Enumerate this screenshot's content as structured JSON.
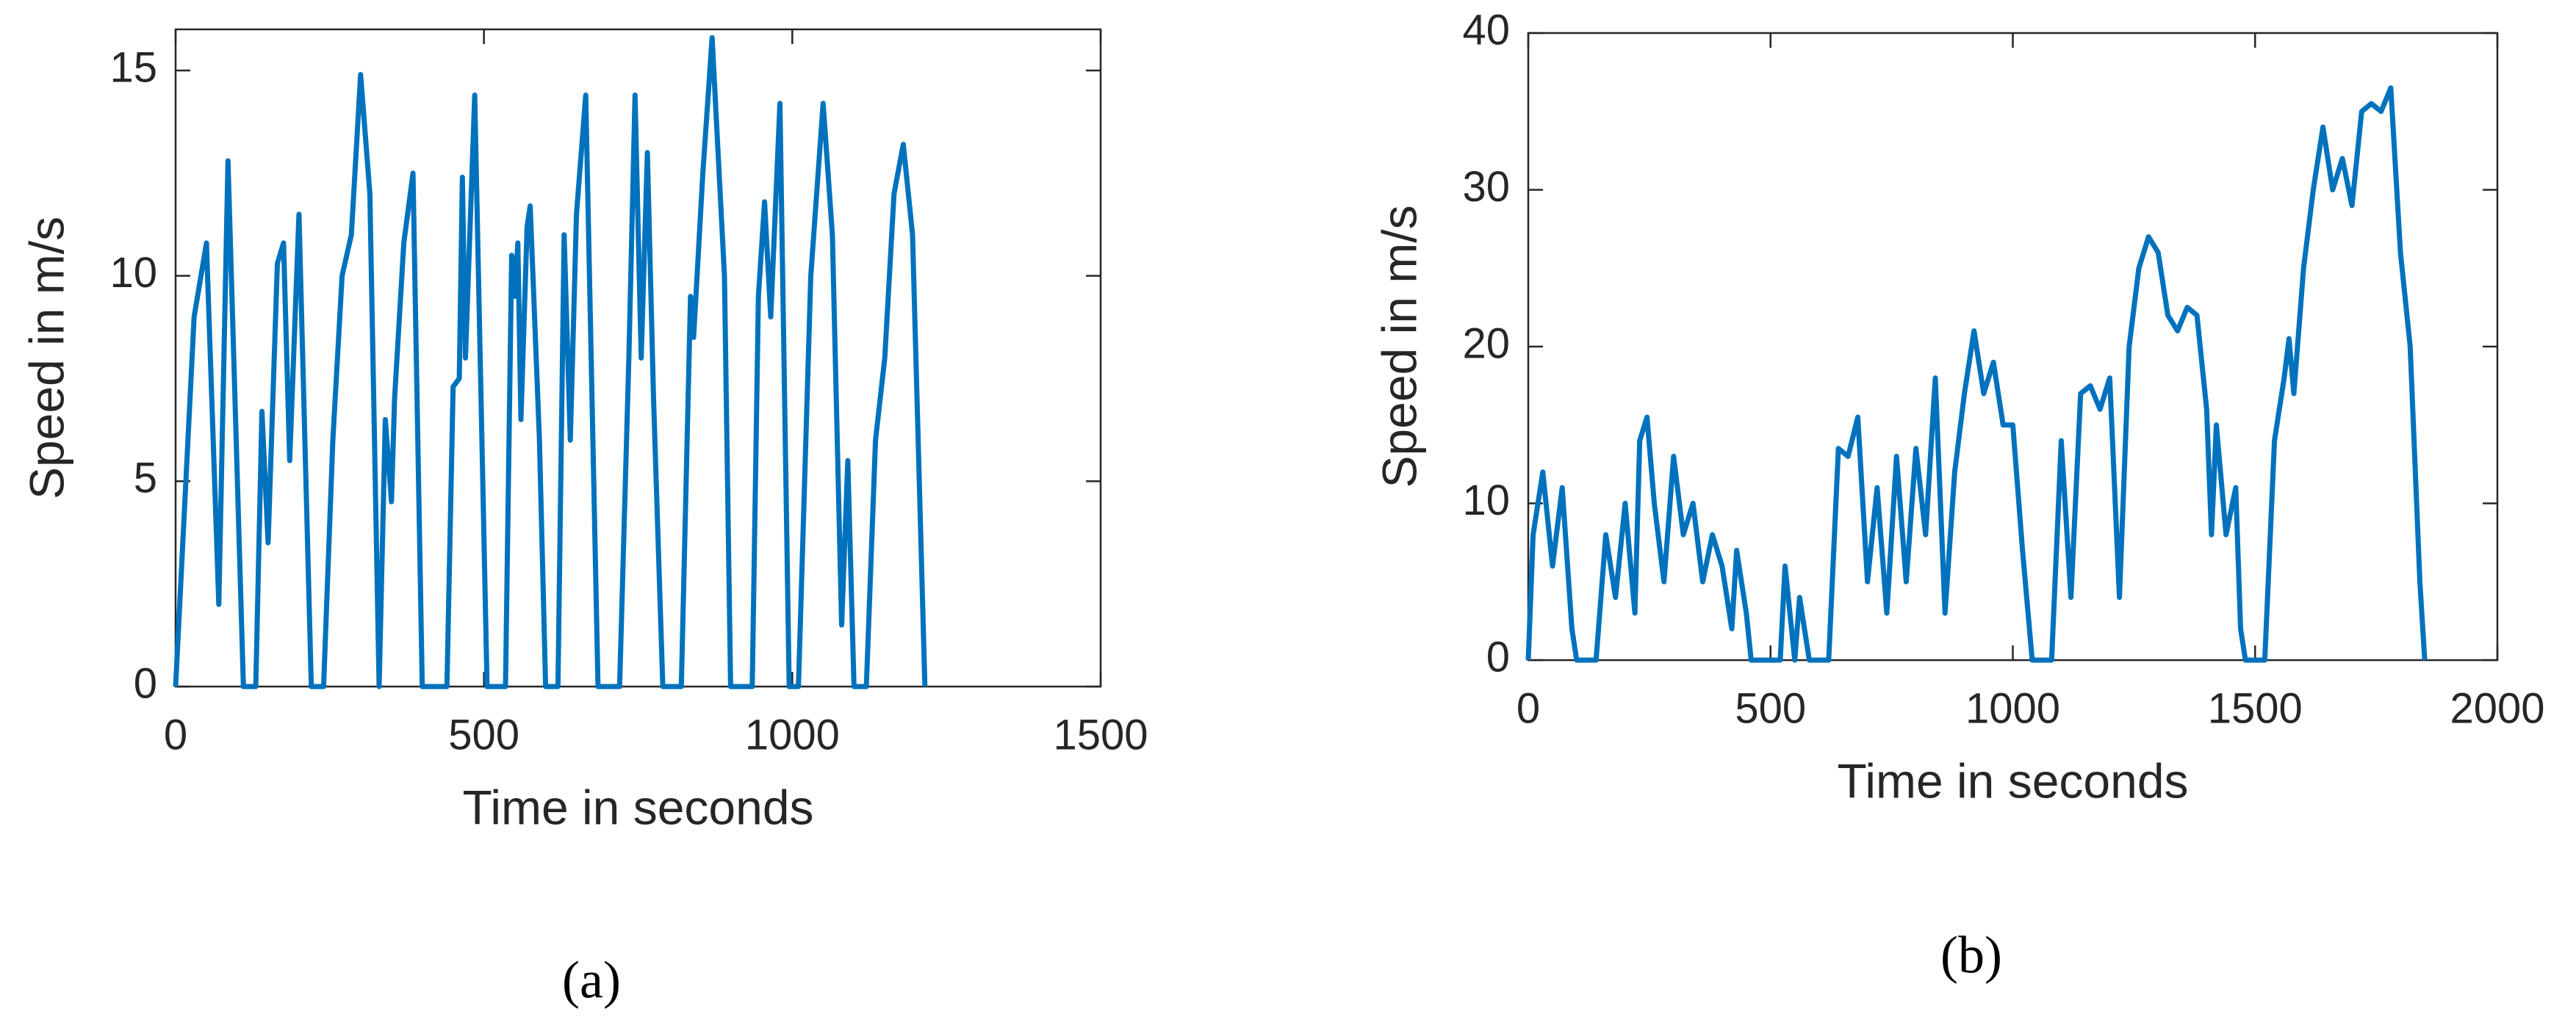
{
  "chart_data": [
    {
      "type": "line",
      "xlabel": "Time in seconds",
      "ylabel": "Speed in m/s",
      "panel_label": "(a)",
      "color": "#0072bd",
      "xlim": [
        0,
        1500
      ],
      "xticks": [
        0,
        500,
        1000,
        1500
      ],
      "ylim": [
        0,
        16
      ],
      "yticks": [
        0,
        5,
        10,
        15
      ],
      "x": [
        0,
        30,
        50,
        70,
        85,
        110,
        130,
        140,
        150,
        165,
        175,
        185,
        200,
        220,
        240,
        255,
        270,
        285,
        300,
        315,
        330,
        340,
        350,
        355,
        370,
        385,
        400,
        440,
        450,
        460,
        465,
        470,
        485,
        505,
        535,
        545,
        550,
        555,
        560,
        570,
        575,
        590,
        600,
        620,
        630,
        640,
        650,
        665,
        685,
        720,
        735,
        745,
        755,
        765,
        775,
        790,
        820,
        835,
        840,
        855,
        870,
        890,
        900,
        935,
        945,
        955,
        965,
        980,
        995,
        1010,
        1030,
        1050,
        1065,
        1080,
        1090,
        1100,
        1120,
        1135,
        1150,
        1165,
        1180,
        1195,
        1215
      ],
      "values": [
        0,
        9,
        10.8,
        2,
        12.8,
        0,
        0,
        6.7,
        3.5,
        10.3,
        10.8,
        5.5,
        11.5,
        0,
        0,
        6,
        10,
        11,
        14.9,
        12,
        0,
        6.5,
        4.5,
        7,
        10.8,
        12.5,
        0,
        0,
        7.3,
        7.5,
        12.4,
        8,
        14.4,
        0,
        0,
        10.5,
        9.5,
        10.8,
        6.5,
        11.2,
        11.7,
        6,
        0,
        0,
        11,
        6,
        11.5,
        14.4,
        0,
        0,
        8,
        14.4,
        8,
        13,
        7,
        0,
        0,
        9.5,
        8.5,
        12.5,
        15.8,
        10,
        0,
        0,
        9.5,
        11.8,
        9,
        14.2,
        0,
        0,
        10,
        14.2,
        11,
        1.5,
        5.5,
        0,
        0,
        6,
        8,
        12,
        13.2,
        11,
        0
      ]
    },
    {
      "type": "line",
      "xlabel": "Time in seconds",
      "ylabel": "Speed in m/s",
      "panel_label": "(b)",
      "color": "#0072bd",
      "xlim": [
        0,
        2000
      ],
      "xticks": [
        0,
        500,
        1000,
        1500,
        2000
      ],
      "ylim": [
        0,
        40
      ],
      "yticks": [
        0,
        10,
        20,
        30,
        40
      ],
      "x": [
        0,
        10,
        30,
        50,
        70,
        90,
        100,
        140,
        160,
        180,
        200,
        220,
        230,
        245,
        260,
        280,
        300,
        320,
        340,
        360,
        380,
        400,
        420,
        430,
        450,
        460,
        520,
        530,
        550,
        560,
        580,
        620,
        640,
        660,
        680,
        700,
        720,
        740,
        760,
        780,
        800,
        820,
        840,
        860,
        880,
        900,
        920,
        940,
        960,
        980,
        1000,
        1020,
        1040,
        1080,
        1100,
        1120,
        1140,
        1160,
        1180,
        1200,
        1220,
        1240,
        1260,
        1280,
        1300,
        1320,
        1340,
        1360,
        1380,
        1400,
        1410,
        1420,
        1440,
        1460,
        1470,
        1480,
        1520,
        1540,
        1560,
        1570,
        1580,
        1600,
        1620,
        1640,
        1660,
        1680,
        1700,
        1720,
        1740,
        1760,
        1780,
        1800,
        1820,
        1840,
        1850
      ],
      "values": [
        0,
        8,
        12,
        6,
        11,
        2,
        0,
        0,
        8,
        4,
        10,
        3,
        14,
        15.5,
        10,
        5,
        13,
        8,
        10,
        5,
        8,
        6,
        2,
        7,
        3,
        0,
        0,
        6,
        0,
        4,
        0,
        0,
        13.5,
        13,
        15.5,
        5,
        11,
        3,
        13,
        5,
        13.5,
        8,
        18,
        3,
        12,
        17,
        21,
        17,
        19,
        15,
        15,
        7,
        0,
        0,
        14,
        4,
        17,
        17.5,
        16,
        18,
        4,
        20,
        25,
        27,
        26,
        22,
        21,
        22.5,
        22,
        16,
        8,
        15,
        8,
        11,
        2,
        0,
        0,
        14,
        18,
        20.5,
        17,
        25,
        30,
        34,
        30,
        32,
        29,
        35,
        35.5,
        35,
        36.5,
        26,
        20,
        5,
        0
      ]
    }
  ]
}
